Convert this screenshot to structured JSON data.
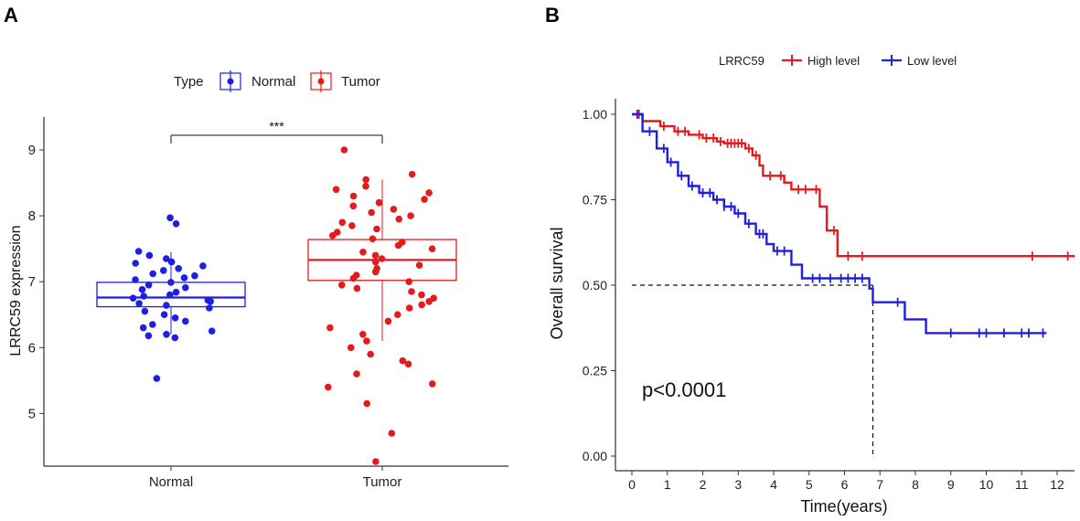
{
  "chart_data": [
    {
      "panel": "A",
      "type": "boxplot",
      "legend_title": "Type",
      "legend_entries": [
        "Normal",
        "Tumor"
      ],
      "colors": {
        "Normal": "#1f1fe0",
        "Tumor": "#e41a1c"
      },
      "ylabel": "LRRC59 expression",
      "xlabel": "",
      "categories": [
        "Normal",
        "Tumor"
      ],
      "ylim": [
        4.2,
        9.5
      ],
      "yticks": [
        5,
        6,
        7,
        8,
        9
      ],
      "yticklabels": [
        "5",
        "6",
        "7",
        "8",
        "9"
      ],
      "significance": "***",
      "boxes": [
        {
          "name": "Normal",
          "q1": 6.62,
          "median": 6.76,
          "q3": 6.99,
          "whisker_low": 6.2,
          "whisker_high": 7.45
        },
        {
          "name": "Tumor",
          "q1": 7.02,
          "median": 7.33,
          "q3": 7.64,
          "whisker_low": 6.1,
          "whisker_high": 8.55
        }
      ],
      "points": {
        "Normal": [
          7.97,
          7.88,
          7.46,
          7.4,
          7.35,
          7.3,
          7.28,
          7.24,
          7.2,
          7.17,
          7.12,
          7.09,
          7.06,
          7.03,
          6.99,
          6.95,
          6.91,
          6.88,
          6.84,
          6.8,
          6.78,
          6.75,
          6.72,
          6.7,
          6.67,
          6.64,
          6.6,
          6.55,
          6.5,
          6.45,
          6.4,
          6.35,
          6.3,
          6.25,
          6.2,
          6.18,
          6.15,
          5.53
        ],
        "Tumor": [
          9.0,
          8.63,
          8.55,
          8.45,
          8.4,
          8.35,
          8.3,
          8.25,
          8.2,
          8.15,
          8.1,
          8.05,
          8.0,
          7.95,
          7.9,
          7.85,
          7.8,
          7.75,
          7.7,
          7.65,
          7.6,
          7.55,
          7.5,
          7.45,
          7.4,
          7.35,
          7.3,
          7.25,
          7.2,
          7.15,
          7.1,
          7.05,
          7.0,
          6.95,
          6.9,
          6.85,
          6.8,
          6.75,
          6.7,
          6.65,
          6.6,
          6.5,
          6.4,
          6.3,
          6.2,
          6.1,
          6.0,
          5.9,
          5.8,
          5.75,
          5.6,
          5.45,
          5.4,
          5.15,
          4.7,
          4.27
        ]
      }
    },
    {
      "panel": "B",
      "type": "line",
      "subtype": "kaplan-meier",
      "legend_title": "LRRC59",
      "xlabel": "Time(years)",
      "ylabel": "Overall survival",
      "xlim": [
        -0.4,
        12.5
      ],
      "ylim": [
        -0.03,
        1.05
      ],
      "xticks": [
        0,
        1,
        2,
        3,
        4,
        5,
        6,
        7,
        8,
        9,
        10,
        11,
        12
      ],
      "xticklabels": [
        "0",
        "1",
        "2",
        "3",
        "4",
        "5",
        "6",
        "7",
        "8",
        "9",
        "10",
        "11",
        "12"
      ],
      "yticks": [
        0.0,
        0.25,
        0.5,
        0.75,
        1.0
      ],
      "yticklabels": [
        "0.00",
        "0.25",
        "0.50",
        "0.75",
        "1.00"
      ],
      "annotation": "p<0.0001",
      "median_line": {
        "y": 0.5,
        "x": 6.8
      },
      "series": [
        {
          "name": "High level",
          "color": "#e41a1c",
          "steps": [
            [
              0,
              1.0
            ],
            [
              0.3,
              0.98
            ],
            [
              0.8,
              0.965
            ],
            [
              1.2,
              0.95
            ],
            [
              1.6,
              0.94
            ],
            [
              2.0,
              0.93
            ],
            [
              2.4,
              0.92
            ],
            [
              2.6,
              0.915
            ],
            [
              3.2,
              0.9
            ],
            [
              3.4,
              0.88
            ],
            [
              3.6,
              0.85
            ],
            [
              3.7,
              0.82
            ],
            [
              4.3,
              0.8
            ],
            [
              4.5,
              0.78
            ],
            [
              5.3,
              0.73
            ],
            [
              5.5,
              0.66
            ],
            [
              5.8,
              0.585
            ],
            [
              12.5,
              0.585
            ]
          ],
          "censor_times": [
            0.2,
            0.9,
            1.3,
            1.5,
            1.9,
            2.1,
            2.3,
            2.5,
            2.7,
            2.8,
            2.9,
            3.0,
            3.1,
            3.3,
            3.5,
            3.9,
            4.2,
            4.7,
            4.9,
            5.2,
            5.7,
            6.1,
            6.5,
            11.3,
            12.3
          ]
        },
        {
          "name": "Low level",
          "color": "#1f1fe0",
          "steps": [
            [
              0,
              1.0
            ],
            [
              0.3,
              0.95
            ],
            [
              0.7,
              0.9
            ],
            [
              1.0,
              0.86
            ],
            [
              1.3,
              0.82
            ],
            [
              1.6,
              0.79
            ],
            [
              1.9,
              0.77
            ],
            [
              2.3,
              0.75
            ],
            [
              2.6,
              0.73
            ],
            [
              2.9,
              0.71
            ],
            [
              3.2,
              0.68
            ],
            [
              3.5,
              0.65
            ],
            [
              3.8,
              0.62
            ],
            [
              4.0,
              0.6
            ],
            [
              4.5,
              0.56
            ],
            [
              4.8,
              0.52
            ],
            [
              6.7,
              0.49
            ],
            [
              6.8,
              0.45
            ],
            [
              7.7,
              0.4
            ],
            [
              8.3,
              0.36
            ],
            [
              11.7,
              0.36
            ]
          ],
          "censor_times": [
            0.15,
            0.5,
            0.9,
            1.1,
            1.4,
            1.7,
            2.0,
            2.2,
            2.4,
            2.6,
            2.8,
            3.0,
            3.3,
            3.6,
            3.7,
            4.1,
            4.3,
            5.1,
            5.3,
            5.6,
            5.9,
            6.1,
            6.3,
            6.5,
            7.5,
            9.0,
            9.8,
            10.0,
            10.5,
            11.0,
            11.2,
            11.6
          ]
        }
      ]
    }
  ],
  "panels": {
    "a_letter": "A",
    "b_letter": "B"
  }
}
